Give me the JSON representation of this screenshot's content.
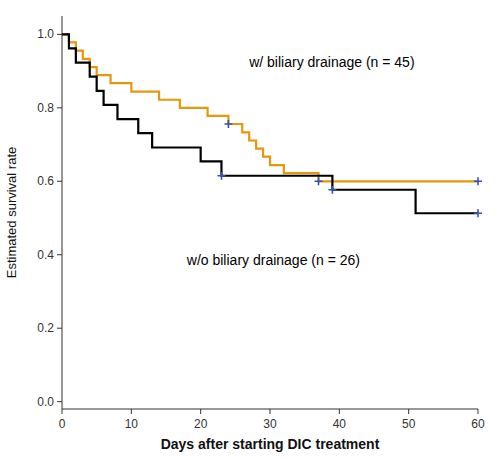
{
  "chart_data": {
    "type": "step",
    "xlabel": "Days after starting DIC treatment",
    "ylabel": "Estimated survival rate",
    "xlim": [
      0,
      60
    ],
    "ylim": [
      -0.02,
      1.05
    ],
    "xticks": [
      0,
      10,
      20,
      30,
      40,
      50,
      60
    ],
    "yticks": [
      {
        "value": 0.0,
        "label": "0.0"
      },
      0.2,
      0.4,
      0.6,
      0.8,
      {
        "value": 1.0,
        "label": "1.0"
      }
    ],
    "grid": false,
    "series": [
      {
        "name": "w/ biliary drainage (n = 45)",
        "type": "step",
        "color": "#E8960C",
        "x": [
          0,
          1,
          2,
          3,
          4,
          5,
          7,
          10,
          14,
          17,
          21,
          24,
          26,
          27,
          28,
          29,
          30,
          32,
          33,
          35,
          37,
          40,
          60
        ],
        "values": [
          1.0,
          0.978,
          0.956,
          0.933,
          0.911,
          0.889,
          0.867,
          0.844,
          0.822,
          0.8,
          0.778,
          0.756,
          0.733,
          0.711,
          0.689,
          0.667,
          0.644,
          0.622,
          0.622,
          0.622,
          0.6,
          0.6,
          0.6
        ]
      },
      {
        "name": "w/o biliary drainage (n = 26)",
        "type": "step",
        "color": "#000000",
        "x": [
          0,
          1,
          2,
          4,
          5,
          6,
          8,
          11,
          13,
          20,
          23,
          24,
          26,
          39,
          41,
          51,
          60
        ],
        "values": [
          1.0,
          0.962,
          0.923,
          0.885,
          0.846,
          0.808,
          0.769,
          0.731,
          0.692,
          0.654,
          0.615,
          0.615,
          0.615,
          0.577,
          0.577,
          0.513,
          0.513
        ]
      },
      {
        "type": "scatter",
        "marker": "plus",
        "color": "#3355BB",
        "x": [
          24,
          37,
          60
        ],
        "values": [
          0.756,
          0.6,
          0.6
        ]
      },
      {
        "type": "scatter",
        "marker": "plus",
        "color": "#3355BB",
        "x": [
          23,
          39,
          60
        ],
        "values": [
          0.615,
          0.577,
          0.513
        ]
      }
    ]
  }
}
